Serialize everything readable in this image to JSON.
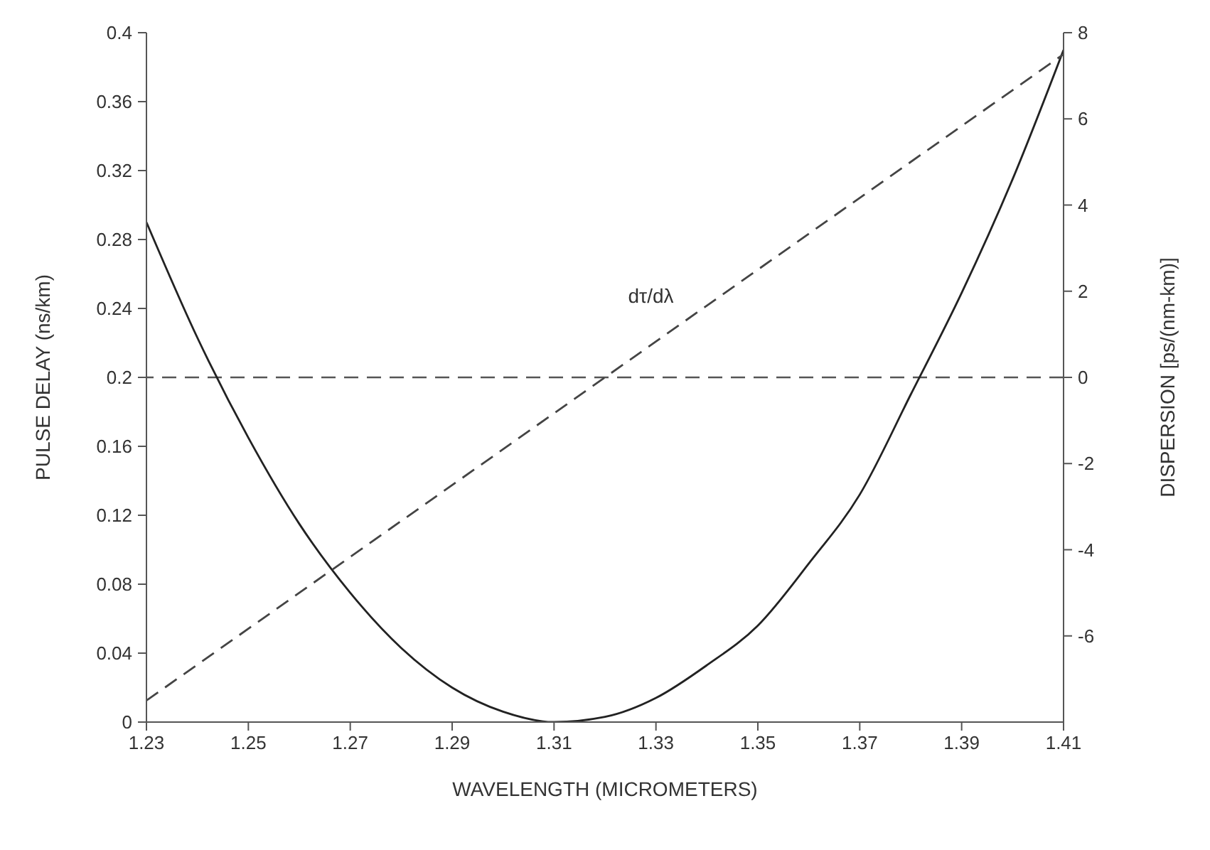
{
  "chart_data": {
    "type": "line",
    "xlabel": "WAVELENGTH (MICROMETERS)",
    "ylabel": "PULSE DELAY (ns/km)",
    "y2label": "DISPERSION [ps/(nm-km)]",
    "xlim": [
      1.23,
      1.41
    ],
    "xticks": [
      1.23,
      1.25,
      1.27,
      1.29,
      1.31,
      1.33,
      1.35,
      1.37,
      1.39,
      1.41
    ],
    "ylim": [
      0,
      0.4
    ],
    "yticks": [
      0,
      0.04,
      0.08,
      0.12,
      0.16,
      0.2,
      0.24,
      0.28,
      0.32,
      0.36,
      0.4
    ],
    "y2lim": [
      -8,
      8
    ],
    "y2ticks": [
      -6,
      -4,
      -2,
      0,
      2,
      4,
      6,
      8
    ],
    "x": [
      1.23,
      1.24,
      1.25,
      1.26,
      1.27,
      1.28,
      1.29,
      1.3,
      1.31,
      1.32,
      1.33,
      1.34,
      1.35,
      1.36,
      1.37,
      1.38,
      1.39,
      1.4,
      1.41
    ],
    "series": [
      {
        "color": "#222222",
        "values": [
          0.29,
          0.223,
          0.165,
          0.115,
          0.075,
          0.043,
          0.02,
          0.006,
          0,
          0.003,
          0.014,
          0.033,
          0.056,
          0.092,
          0.132,
          0.19,
          0.249,
          0.315,
          0.39
        ]
      },
      {
        "name": "dτ/dλ",
        "color": "#444444",
        "axis": "y2",
        "line_style": "dashed",
        "x": [
          1.23,
          1.41
        ],
        "values": [
          -7.5,
          7.5
        ]
      }
    ],
    "ref_lines": [
      {
        "axis": "y2",
        "value": 0,
        "color": "#555555",
        "line_style": "dashed"
      }
    ],
    "grid": false,
    "marker": "none"
  }
}
